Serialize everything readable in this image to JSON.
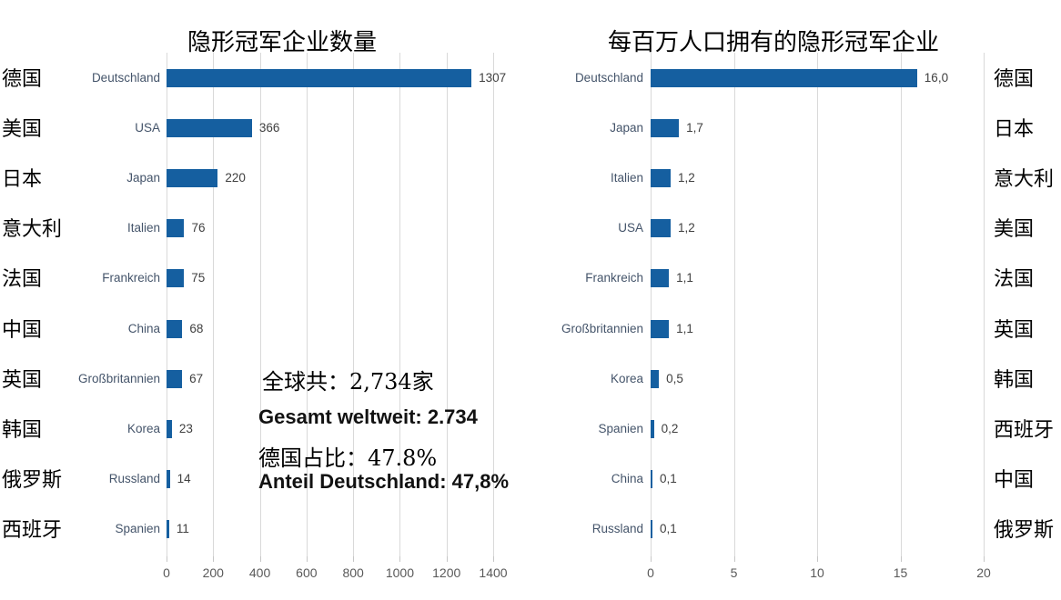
{
  "chart_data": [
    {
      "type": "bar",
      "orientation": "horizontal",
      "title": "隐形冠军企业数量",
      "categories_cn": [
        "德国",
        "美国",
        "日本",
        "意大利",
        "法国",
        "中国",
        "英国",
        "韩国",
        "俄罗斯",
        "西班牙"
      ],
      "categories_de": [
        "Deutschland",
        "USA",
        "Japan",
        "Italien",
        "Frankreich",
        "China",
        "Großbritannien",
        "Korea",
        "Russland",
        "Spanien"
      ],
      "values": [
        1307,
        366,
        220,
        76,
        75,
        68,
        67,
        23,
        14,
        11
      ],
      "value_labels": [
        "1307",
        "366",
        "220",
        "76",
        "75",
        "68",
        "67",
        "23",
        "14",
        "11"
      ],
      "x_ticks": [
        0,
        200,
        400,
        600,
        800,
        1000,
        1200,
        1400
      ],
      "x_tick_labels": [
        "0",
        "200",
        "400",
        "600",
        "800",
        "1000",
        "1200",
        "1400"
      ],
      "xlim": [
        0,
        1400
      ],
      "grid": true,
      "legend": "none"
    },
    {
      "type": "bar",
      "orientation": "horizontal",
      "title": "每百万人口拥有的隐形冠军企业",
      "categories_de": [
        "Deutschland",
        "Japan",
        "Italien",
        "USA",
        "Frankreich",
        "Großbritannien",
        "Korea",
        "Spanien",
        "China",
        "Russland"
      ],
      "categories_cn": [
        "德国",
        "日本",
        "意大利",
        "美国",
        "法国",
        "英国",
        "韩国",
        "西班牙",
        "中国",
        "俄罗斯"
      ],
      "values": [
        16.0,
        1.7,
        1.2,
        1.2,
        1.1,
        1.1,
        0.5,
        0.2,
        0.1,
        0.1
      ],
      "value_labels": [
        "16,0",
        "1,7",
        "1,2",
        "1,2",
        "1,1",
        "1,1",
        "0,5",
        "0,2",
        "0,1",
        "0,1"
      ],
      "x_ticks": [
        0,
        5,
        10,
        15,
        20
      ],
      "x_tick_labels": [
        "0",
        "5",
        "10",
        "15",
        "20"
      ],
      "xlim": [
        0,
        20
      ],
      "grid": true,
      "legend": "none"
    }
  ],
  "annotation": {
    "total_cn": "全球共：2,734家",
    "total_de": "Gesamt weltweit: 2.734",
    "share_cn": "德国占比：47.8%",
    "share_de": "Anteil Deutschland: 47,8%"
  },
  "colors": {
    "bar": "#155FA0",
    "grid": "#D9D9D9",
    "tick_mark": "#C6C6C6",
    "category_label_de": "#44546A",
    "value_label": "#404040",
    "tick_label": "#595959"
  }
}
